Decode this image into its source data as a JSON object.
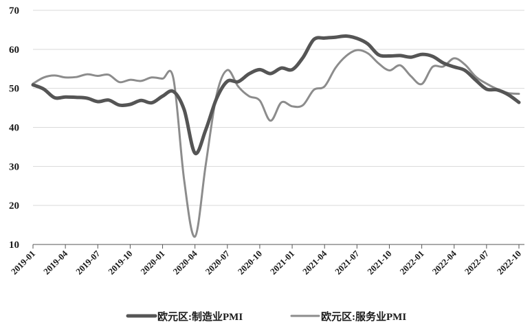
{
  "chart_data": {
    "type": "line",
    "title": "",
    "xlabel": "",
    "ylabel": "",
    "ylim": [
      10,
      70
    ],
    "yticks": [
      10,
      20,
      30,
      40,
      50,
      60,
      70
    ],
    "grid": "horizontal",
    "legend_position": "bottom",
    "categories": [
      "2019-01",
      "2019-02",
      "2019-03",
      "2019-04",
      "2019-05",
      "2019-06",
      "2019-07",
      "2019-08",
      "2019-09",
      "2019-10",
      "2019-11",
      "2019-12",
      "2020-01",
      "2020-02",
      "2020-03",
      "2020-04",
      "2020-05",
      "2020-06",
      "2020-07",
      "2020-08",
      "2020-09",
      "2020-10",
      "2020-11",
      "2020-12",
      "2021-01",
      "2021-02",
      "2021-03",
      "2021-04",
      "2021-05",
      "2021-06",
      "2021-07",
      "2021-08",
      "2021-09",
      "2021-10",
      "2021-11",
      "2021-12",
      "2022-01",
      "2022-02",
      "2022-03",
      "2022-04",
      "2022-05",
      "2022-06",
      "2022-07",
      "2022-08",
      "2022-09",
      "2022-10"
    ],
    "xtick_labels": [
      "2019-01",
      "2019-04",
      "2019-07",
      "2019-10",
      "2020-01",
      "2020-04",
      "2020-07",
      "2020-10",
      "2021-01",
      "2021-04",
      "2021-07",
      "2021-10",
      "2022-01",
      "2022-04",
      "2022-07",
      "2022-10"
    ],
    "series": [
      {
        "name": "欧元区:制造业PMI",
        "color": "#555555",
        "values": [
          50.9,
          49.8,
          47.6,
          47.8,
          47.7,
          47.5,
          46.6,
          47.0,
          45.7,
          45.9,
          46.9,
          46.3,
          48.0,
          49.2,
          44.5,
          33.4,
          39.4,
          47.4,
          51.8,
          51.7,
          53.7,
          54.8,
          53.8,
          55.2,
          54.8,
          57.9,
          62.5,
          62.9,
          63.1,
          63.4,
          62.8,
          61.4,
          58.6,
          58.3,
          58.4,
          58.0,
          58.7,
          58.2,
          56.5,
          55.5,
          54.6,
          52.1,
          49.8,
          49.6,
          48.4,
          46.4
        ]
      },
      {
        "name": "欧元区:服务业PMI",
        "color": "#8c8c8c",
        "values": [
          51.2,
          52.8,
          53.3,
          52.8,
          52.9,
          53.6,
          53.2,
          53.5,
          51.6,
          52.2,
          51.9,
          52.8,
          52.5,
          52.6,
          26.4,
          12.0,
          30.5,
          48.3,
          54.7,
          50.5,
          48.0,
          46.9,
          41.7,
          46.4,
          45.4,
          45.7,
          49.6,
          50.5,
          55.2,
          58.3,
          59.8,
          59.0,
          56.4,
          54.6,
          55.9,
          53.1,
          51.1,
          55.5,
          55.6,
          57.7,
          56.1,
          53.0,
          51.2,
          49.8,
          48.8,
          48.6
        ]
      }
    ]
  }
}
